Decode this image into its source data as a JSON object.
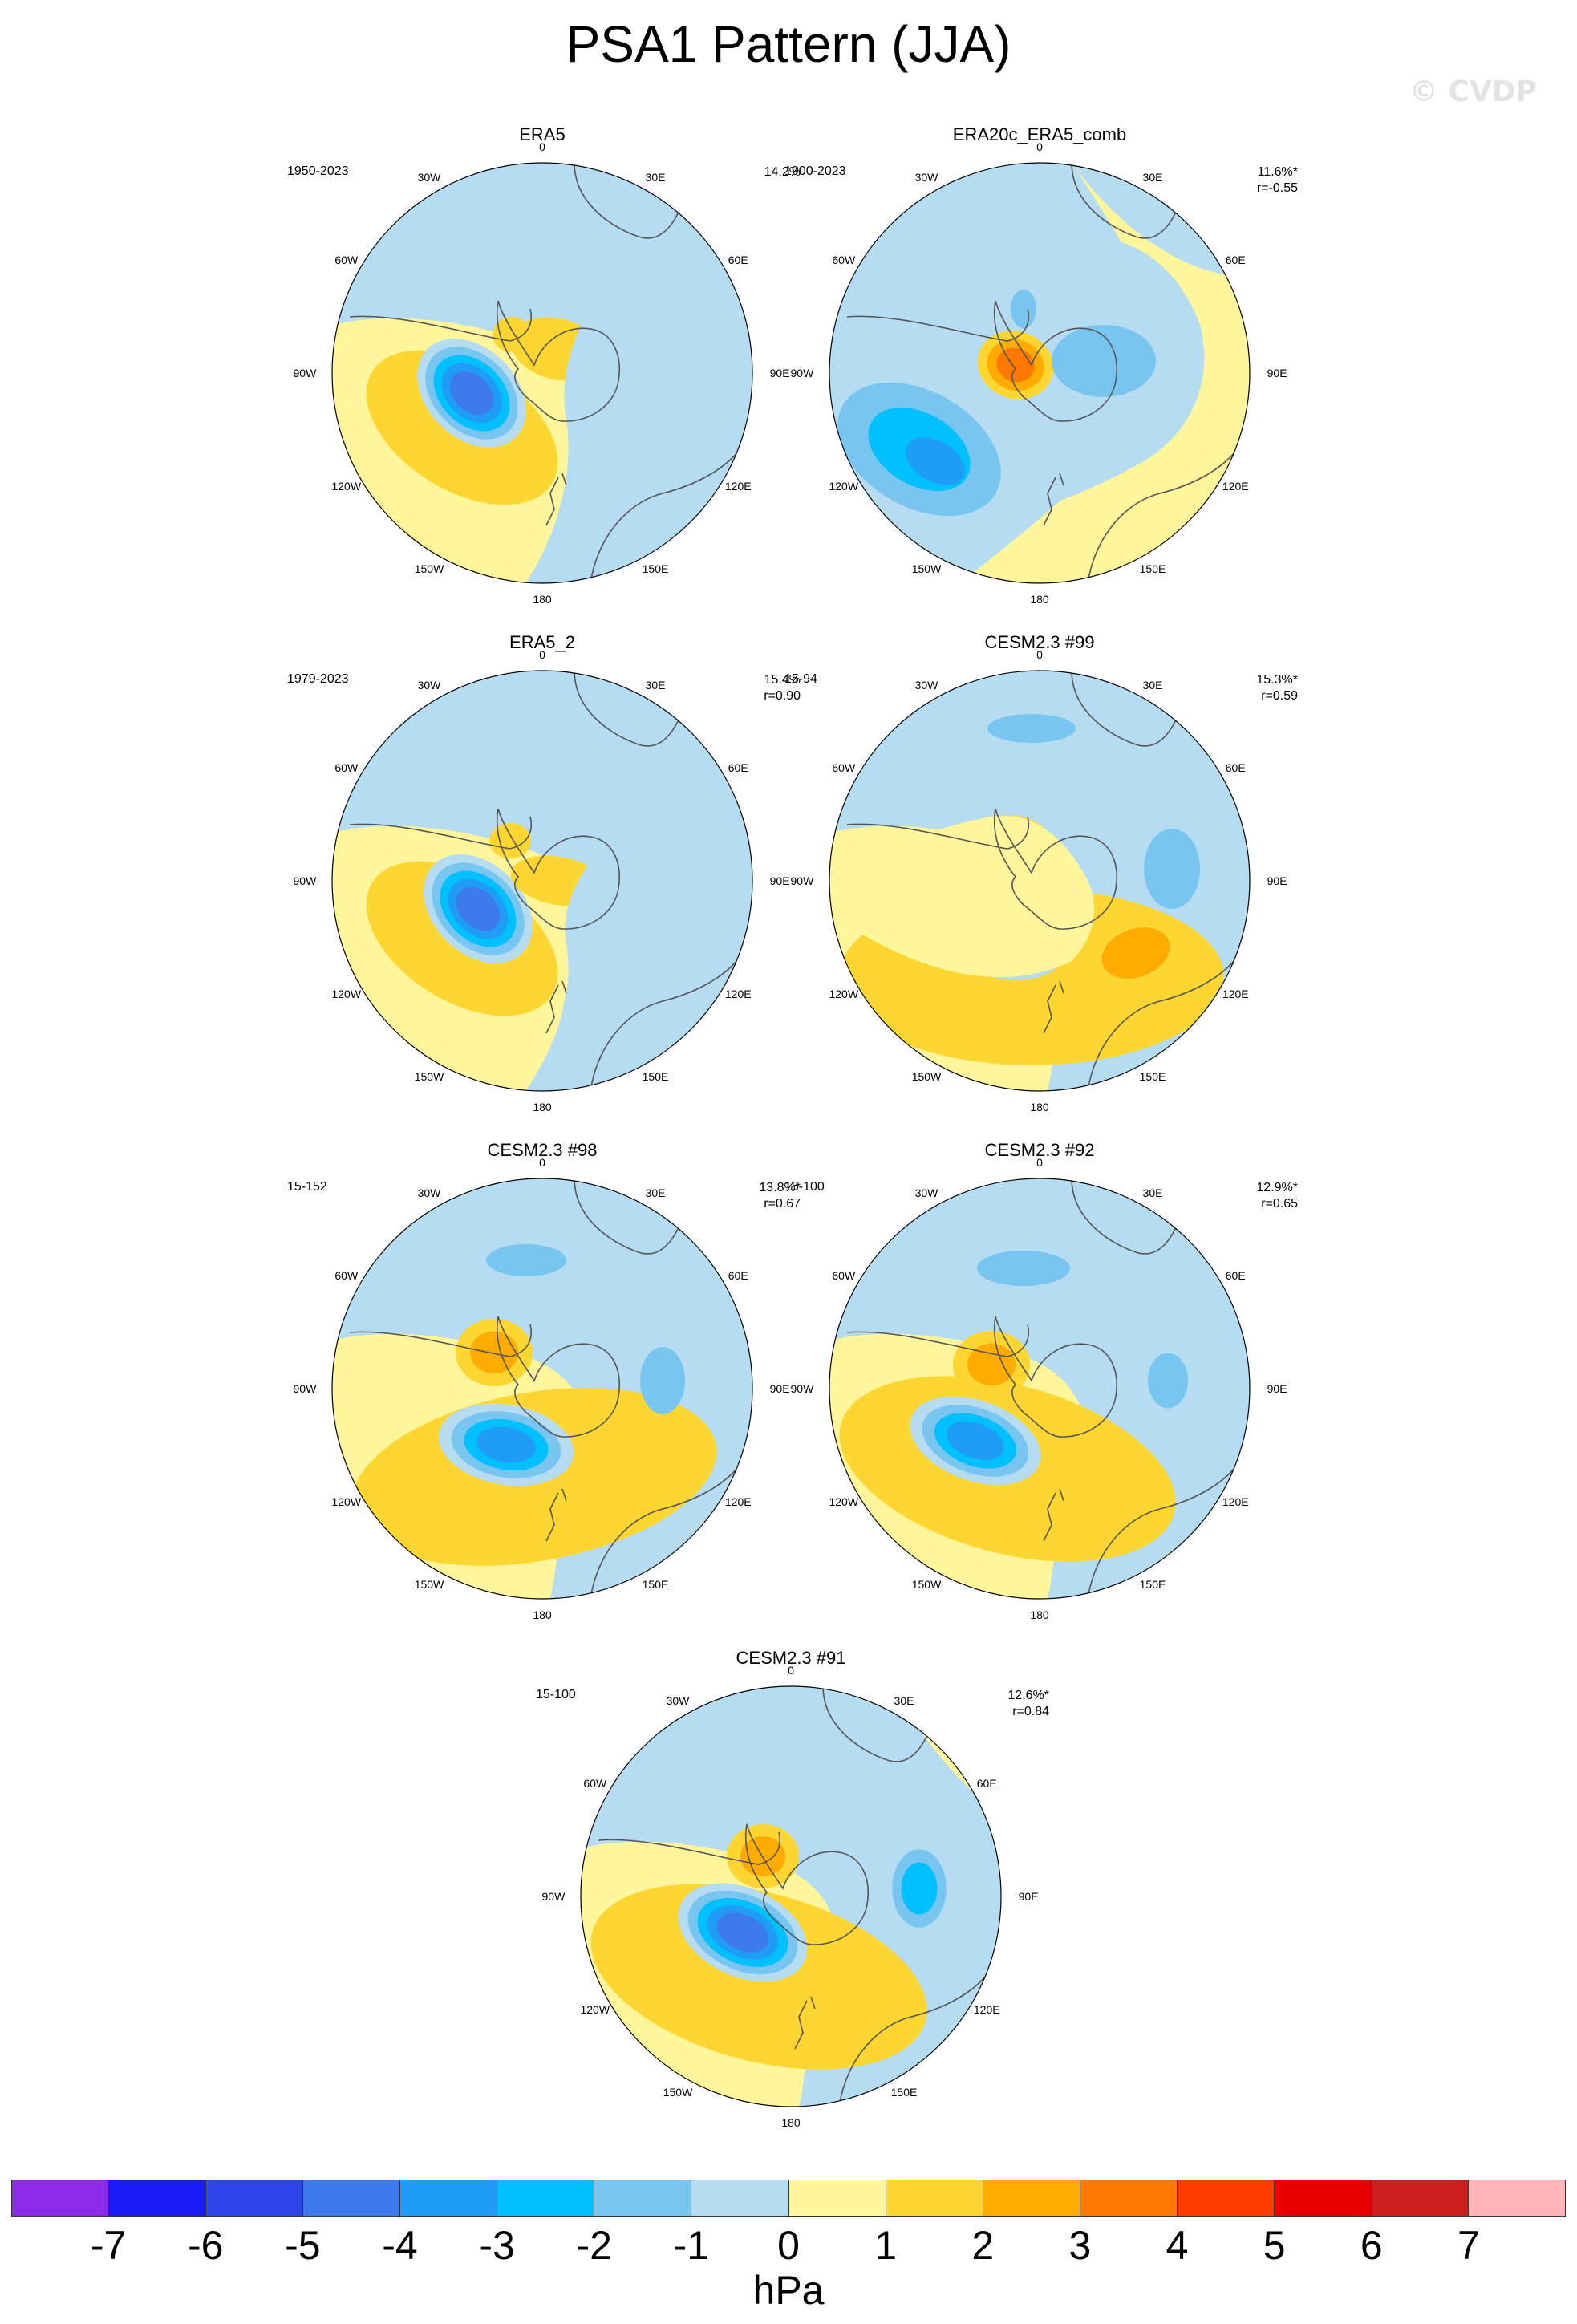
{
  "title": "PSA1 Pattern (JJA)",
  "watermark": "© CVDP",
  "colors": {
    "levels": [
      "#8c2ce8",
      "#1a1af5",
      "#2f45e8",
      "#3d7aec",
      "#1f9cf5",
      "#00c0ff",
      "#78c6f0",
      "#b6dcf2",
      "#fff59a",
      "#fed631",
      "#ffab00",
      "#ff7800",
      "#ff3c00",
      "#e80000",
      "#cd1e1e",
      "#ffb5b5"
    ],
    "coast": "#555555"
  },
  "colorbar": {
    "ticks": [
      "-7",
      "-6",
      "-5",
      "-4",
      "-3",
      "-2",
      "-1",
      "0",
      "1",
      "2",
      "3",
      "4",
      "5",
      "6",
      "7"
    ],
    "unit": "hPa"
  },
  "lon_labels": [
    "0",
    "30E",
    "60E",
    "90E",
    "120E",
    "150E",
    "180",
    "150W",
    "120W",
    "90W",
    "60W",
    "30W"
  ],
  "panels": [
    {
      "title": "ERA5",
      "period": "1950-2023",
      "pct": "14.2%",
      "r": ""
    },
    {
      "title": "ERA20c_ERA5_comb",
      "period": "1900-2023",
      "pct": "11.6%*",
      "r": "r=-0.55"
    },
    {
      "title": "ERA5_2",
      "period": "1979-2023",
      "pct": "15.4%",
      "r": "r=0.90"
    },
    {
      "title": "CESM2.3 #99",
      "period": "15-94",
      "pct": "15.3%*",
      "r": "r=0.59"
    },
    {
      "title": "CESM2.3 #98",
      "period": "15-152",
      "pct": "13.8%*",
      "r": "r=0.67"
    },
    {
      "title": "CESM2.3 #92",
      "period": "15-100",
      "pct": "12.9%*",
      "r": "r=0.65"
    },
    {
      "title": "CESM2.3 #91",
      "period": "15-100",
      "pct": "12.6%*",
      "r": "r=0.84"
    }
  ]
}
